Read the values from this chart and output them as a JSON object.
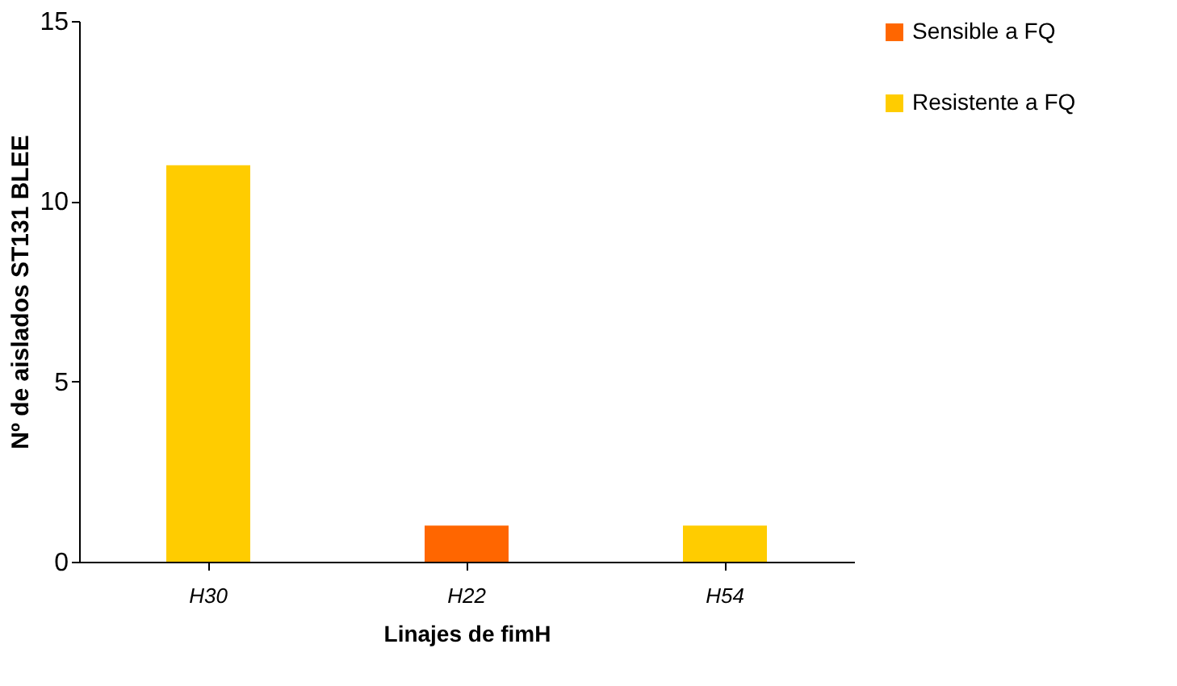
{
  "chart_data": {
    "type": "bar",
    "xlabel": "Linajes de fimH",
    "ylabel": "Nº de aislados ST131 BLEE",
    "categories": [
      "H30",
      "H22",
      "H54"
    ],
    "series": [
      {
        "name": "Sensible a FQ",
        "color": "#ff6600",
        "values": [
          null,
          1,
          null
        ]
      },
      {
        "name": "Resistente a FQ",
        "color": "#ffcc00",
        "values": [
          11,
          null,
          1
        ]
      }
    ],
    "ylim": [
      0,
      15
    ],
    "yticks": [
      0,
      5,
      10,
      15
    ],
    "grid": false,
    "legend": "right"
  }
}
